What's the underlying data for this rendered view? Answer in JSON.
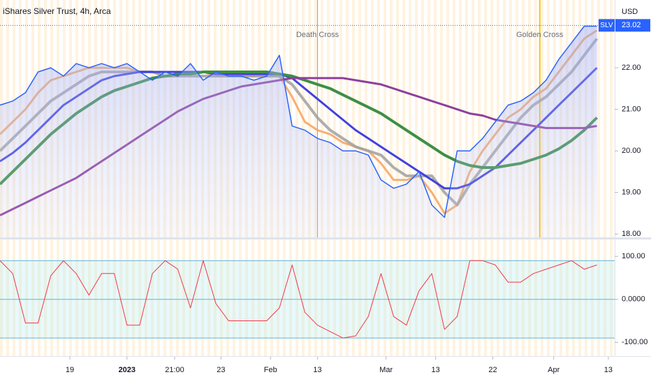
{
  "chart_data": [
    {
      "type": "line",
      "title": "iShares Silver Trust, 4h, Arca",
      "currency": "USD",
      "symbol": "SLV",
      "last_price": 23.02,
      "x": [
        0,
        1,
        2,
        3,
        4,
        5,
        6,
        7,
        8,
        9,
        10,
        11,
        12,
        13,
        14,
        15,
        16,
        17,
        18,
        19,
        20,
        21,
        22,
        23,
        24,
        25,
        26,
        27,
        28,
        29,
        30,
        31,
        32,
        33,
        34,
        35,
        36,
        37,
        38,
        39,
        40,
        41,
        42,
        43,
        44,
        45,
        46,
        47
      ],
      "xlim": [
        0,
        48.4
      ],
      "ylim": [
        17.92,
        23.63
      ],
      "yticks": [
        {
          "value": 18,
          "label": "18.00"
        },
        {
          "value": 19,
          "label": "19.00"
        },
        {
          "value": 20,
          "label": "20.00"
        },
        {
          "value": 21,
          "label": "21.00"
        },
        {
          "value": 22,
          "label": "22.00"
        }
      ],
      "series": [
        {
          "color": "#f5a25d",
          "values": [
            20.4,
            20.7,
            21.0,
            21.4,
            21.7,
            21.8,
            21.9,
            22.0,
            22.0,
            22.0,
            22.0,
            21.9,
            21.9,
            21.8,
            21.8,
            21.9,
            21.9,
            21.8,
            21.8,
            21.8,
            21.8,
            21.8,
            21.8,
            21.3,
            20.7,
            20.5,
            20.4,
            20.2,
            20.1,
            20.0,
            19.7,
            19.3,
            19.3,
            19.4,
            19.0,
            18.5,
            18.7,
            19.5,
            20.0,
            20.4,
            20.8,
            21.0,
            21.3,
            21.5,
            21.9,
            22.3,
            22.7,
            22.9
          ]
        },
        {
          "color": "#a0a0a0",
          "values": [
            20.0,
            20.3,
            20.6,
            20.9,
            21.2,
            21.4,
            21.6,
            21.8,
            21.9,
            21.9,
            21.9,
            21.9,
            21.9,
            21.8,
            21.8,
            21.8,
            21.8,
            21.8,
            21.8,
            21.8,
            21.8,
            21.8,
            21.8,
            21.6,
            21.2,
            20.8,
            20.5,
            20.3,
            20.1,
            20.0,
            19.9,
            19.6,
            19.4,
            19.4,
            19.4,
            19.0,
            18.7,
            19.2,
            19.6,
            20.0,
            20.4,
            20.8,
            21.1,
            21.3,
            21.6,
            21.9,
            22.3,
            22.7
          ]
        },
        {
          "color": "#4141e0",
          "values": [
            19.75,
            19.95,
            20.2,
            20.5,
            20.8,
            21.1,
            21.3,
            21.5,
            21.7,
            21.8,
            21.85,
            21.9,
            21.9,
            21.9,
            21.9,
            21.9,
            21.9,
            21.85,
            21.85,
            21.85,
            21.85,
            21.85,
            21.85,
            21.75,
            21.5,
            21.25,
            21.0,
            20.75,
            20.5,
            20.3,
            20.1,
            19.9,
            19.7,
            19.5,
            19.3,
            19.1,
            19.1,
            19.2,
            19.4,
            19.6,
            19.9,
            20.2,
            20.5,
            20.8,
            21.1,
            21.4,
            21.7,
            22.0
          ]
        },
        {
          "color": "#3d8f45",
          "values": [
            19.2,
            19.5,
            19.8,
            20.1,
            20.4,
            20.65,
            20.9,
            21.1,
            21.3,
            21.45,
            21.55,
            21.65,
            21.75,
            21.8,
            21.85,
            21.85,
            21.9,
            21.9,
            21.9,
            21.9,
            21.9,
            21.9,
            21.85,
            21.8,
            21.7,
            21.6,
            21.5,
            21.35,
            21.2,
            21.05,
            20.9,
            20.7,
            20.5,
            20.3,
            20.1,
            19.9,
            19.75,
            19.65,
            19.6,
            19.6,
            19.65,
            19.7,
            19.8,
            19.9,
            20.05,
            20.25,
            20.5,
            20.8
          ]
        },
        {
          "color": "#8e3f9e",
          "values": [
            18.45,
            18.6,
            18.75,
            18.9,
            19.05,
            19.2,
            19.35,
            19.55,
            19.75,
            19.95,
            20.15,
            20.35,
            20.55,
            20.75,
            20.95,
            21.1,
            21.25,
            21.35,
            21.45,
            21.55,
            21.6,
            21.65,
            21.7,
            21.75,
            21.75,
            21.75,
            21.75,
            21.75,
            21.7,
            21.65,
            21.6,
            21.5,
            21.4,
            21.3,
            21.2,
            21.1,
            21.0,
            20.9,
            20.85,
            20.75,
            20.7,
            20.65,
            20.6,
            20.55,
            20.55,
            20.55,
            20.55,
            20.6
          ]
        },
        {
          "color": "#2962ff",
          "values": [
            21.1,
            21.2,
            21.4,
            21.9,
            22.0,
            21.8,
            22.1,
            22.0,
            22.1,
            22.0,
            22.1,
            21.9,
            21.7,
            21.9,
            21.8,
            22.1,
            21.7,
            21.9,
            21.8,
            21.8,
            21.7,
            21.8,
            22.3,
            20.6,
            20.5,
            20.3,
            20.2,
            20.0,
            20.0,
            19.9,
            19.3,
            19.1,
            19.2,
            19.5,
            18.7,
            18.4,
            20.0,
            20.0,
            20.3,
            20.7,
            21.1,
            21.2,
            21.4,
            21.7,
            22.2,
            22.6,
            23.0,
            23.0
          ]
        }
      ],
      "annotations": [
        {
          "text": "Death Cross",
          "x": 25,
          "color": "#9e9e9e"
        },
        {
          "text": "Golden Cross",
          "x": 42.5,
          "color": "#f5c518"
        }
      ]
    },
    {
      "type": "line",
      "x": [
        0,
        1,
        2,
        3,
        4,
        5,
        6,
        7,
        8,
        9,
        10,
        11,
        12,
        13,
        14,
        15,
        16,
        17,
        18,
        19,
        20,
        21,
        22,
        23,
        24,
        25,
        26,
        27,
        28,
        29,
        30,
        31,
        32,
        33,
        34,
        35,
        36,
        37,
        38,
        39,
        40,
        41,
        42,
        43,
        44,
        45,
        46,
        47
      ],
      "xlim": [
        0,
        48.4
      ],
      "ylim": [
        -132,
        136
      ],
      "yticks": [
        {
          "value": 100,
          "label": "100.00"
        },
        {
          "value": 0,
          "label": "0.0000"
        },
        {
          "value": -100,
          "label": "-100.00"
        }
      ],
      "bands": [
        90,
        0,
        -90
      ],
      "xticks": [
        {
          "value": 5.5,
          "label": "19"
        },
        {
          "value": 10,
          "label": "2023"
        },
        {
          "value": 13.75,
          "label": "21:00"
        },
        {
          "value": 17.4,
          "label": "23"
        },
        {
          "value": 21.3,
          "label": "Feb"
        },
        {
          "value": 25,
          "label": "13"
        },
        {
          "value": 30.4,
          "label": "Mar"
        },
        {
          "value": 34.3,
          "label": "13"
        },
        {
          "value": 38.8,
          "label": "22"
        },
        {
          "value": 43.6,
          "label": "Apr"
        },
        {
          "value": 47.9,
          "label": "13"
        }
      ],
      "series": [
        {
          "color": "#f23645",
          "values": [
            90,
            60,
            -55,
            -55,
            55,
            90,
            60,
            10,
            60,
            60,
            -60,
            -60,
            60,
            90,
            70,
            -20,
            90,
            -10,
            -50,
            -50,
            -50,
            -50,
            -20,
            80,
            -30,
            -60,
            -75,
            -90,
            -85,
            -40,
            60,
            -40,
            -60,
            20,
            60,
            -70,
            -40,
            90,
            90,
            80,
            40,
            40,
            60,
            70,
            80,
            90,
            70,
            80
          ]
        }
      ]
    }
  ]
}
